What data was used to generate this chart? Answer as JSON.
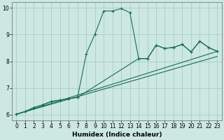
{
  "xlabel": "Humidex (Indice chaleur)",
  "bg_color": "#cce8e0",
  "grid_color": "#aacccc",
  "line_color": "#1a6b5a",
  "xlim": [
    -0.5,
    23.5
  ],
  "ylim": [
    5.8,
    10.2
  ],
  "yticks": [
    6,
    7,
    8,
    9,
    10
  ],
  "xticks": [
    0,
    1,
    2,
    3,
    4,
    5,
    6,
    7,
    8,
    9,
    10,
    11,
    12,
    13,
    14,
    15,
    16,
    17,
    18,
    19,
    20,
    21,
    22,
    23
  ],
  "series1": {
    "x": [
      0,
      1,
      2,
      3,
      4,
      5,
      6,
      7,
      8,
      9,
      10,
      11,
      12,
      13,
      14,
      15,
      16,
      17,
      18,
      19,
      20,
      21,
      22,
      23
    ],
    "y": [
      6.02,
      6.12,
      6.27,
      6.37,
      6.5,
      6.55,
      6.6,
      6.65,
      8.28,
      9.02,
      9.88,
      9.88,
      9.97,
      9.82,
      8.1,
      8.1,
      8.6,
      8.48,
      8.52,
      8.63,
      8.35,
      8.75,
      8.52,
      8.37
    ]
  },
  "series2": {
    "x": [
      0,
      1,
      2,
      3,
      4,
      5,
      6,
      7,
      14,
      15,
      16,
      17,
      18,
      19,
      20,
      21,
      22,
      23
    ],
    "y": [
      6.02,
      6.12,
      6.27,
      6.37,
      6.5,
      6.55,
      6.6,
      6.65,
      8.1,
      8.1,
      8.6,
      8.48,
      8.52,
      8.63,
      8.35,
      8.75,
      8.52,
      8.37
    ]
  },
  "line1": {
    "x": [
      0,
      23
    ],
    "y": [
      6.02,
      8.37
    ]
  },
  "line2": {
    "x": [
      0,
      23
    ],
    "y": [
      6.02,
      8.18
    ]
  }
}
